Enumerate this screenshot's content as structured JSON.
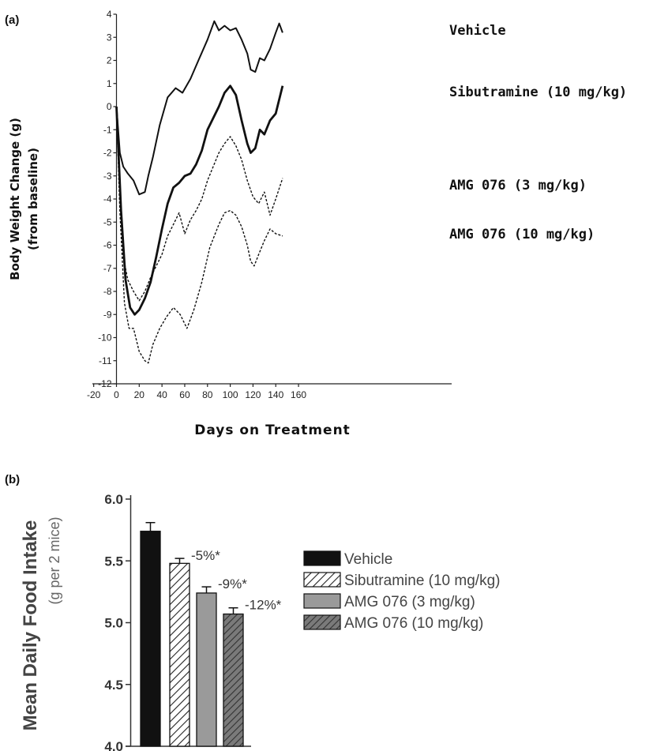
{
  "chart_data": [
    {
      "type": "line",
      "panel_label": "(a)",
      "ylabel_line1": "Body Weight Change (g)",
      "ylabel_line2": "(from baseline)",
      "xlabel": "Days on Treatment",
      "xlim": [
        -20,
        160
      ],
      "ylim": [
        -12,
        4
      ],
      "xticks": [
        -20,
        0,
        20,
        40,
        60,
        80,
        100,
        120,
        140,
        160
      ],
      "yticks": [
        4,
        3,
        2,
        1,
        0,
        -1,
        -2,
        -3,
        -4,
        -5,
        -6,
        -7,
        -8,
        -9,
        -10,
        -11,
        -12
      ],
      "grid": false,
      "series": [
        {
          "name": "Vehicle",
          "style": "solid",
          "x": [
            0,
            3,
            6,
            10,
            15,
            20,
            25,
            28,
            32,
            38,
            45,
            52,
            58,
            65,
            72,
            80,
            86,
            90,
            95,
            100,
            105,
            110,
            115,
            118,
            122,
            126,
            130,
            135,
            140,
            143,
            146
          ],
          "y": [
            0,
            -2.0,
            -2.6,
            -2.9,
            -3.2,
            -3.8,
            -3.7,
            -3.0,
            -2.2,
            -0.8,
            0.4,
            0.8,
            0.6,
            1.2,
            2.0,
            2.9,
            3.7,
            3.3,
            3.5,
            3.3,
            3.4,
            2.9,
            2.3,
            1.6,
            1.5,
            2.1,
            2.0,
            2.5,
            3.2,
            3.6,
            3.2
          ]
        },
        {
          "name": "Sibutramine (10 mg/kg)",
          "style": "bold",
          "x": [
            0,
            4,
            8,
            12,
            16,
            20,
            25,
            30,
            35,
            40,
            45,
            50,
            55,
            60,
            65,
            70,
            75,
            80,
            85,
            90,
            95,
            100,
            105,
            110,
            115,
            118,
            122,
            126,
            130,
            135,
            140,
            146
          ],
          "y": [
            0,
            -4.5,
            -7.5,
            -8.7,
            -9.0,
            -8.8,
            -8.3,
            -7.6,
            -6.5,
            -5.3,
            -4.2,
            -3.5,
            -3.3,
            -3.0,
            -2.9,
            -2.5,
            -1.9,
            -1.0,
            -0.5,
            0.0,
            0.6,
            0.9,
            0.5,
            -0.6,
            -1.6,
            -2.0,
            -1.8,
            -1.0,
            -1.2,
            -0.6,
            -0.3,
            0.9
          ]
        },
        {
          "name": "AMG 076 (3 mg/kg)",
          "style": "dashed",
          "x": [
            0,
            3,
            6,
            10,
            15,
            20,
            25,
            30,
            35,
            40,
            45,
            50,
            55,
            60,
            65,
            70,
            75,
            80,
            85,
            90,
            95,
            100,
            105,
            110,
            115,
            120,
            125,
            130,
            135,
            140,
            146
          ],
          "y": [
            0,
            -4.0,
            -6.5,
            -7.5,
            -8.0,
            -8.4,
            -8.0,
            -7.4,
            -6.9,
            -6.4,
            -5.6,
            -5.1,
            -4.6,
            -5.5,
            -4.9,
            -4.5,
            -4.0,
            -3.2,
            -2.6,
            -2.0,
            -1.6,
            -1.3,
            -1.7,
            -2.3,
            -3.2,
            -3.9,
            -4.2,
            -3.7,
            -4.7,
            -4.0,
            -3.1
          ]
        },
        {
          "name": "AMG 076 (10 mg/kg)",
          "style": "dashed",
          "x": [
            0,
            3,
            7,
            11,
            15,
            20,
            25,
            28,
            32,
            38,
            44,
            50,
            56,
            62,
            68,
            75,
            82,
            90,
            95,
            100,
            105,
            110,
            115,
            118,
            121,
            125,
            130,
            135,
            140,
            146
          ],
          "y": [
            0,
            -4.5,
            -8.5,
            -9.6,
            -9.6,
            -10.6,
            -11.0,
            -11.1,
            -10.3,
            -9.6,
            -9.1,
            -8.7,
            -9.0,
            -9.6,
            -8.8,
            -7.6,
            -6.1,
            -5.1,
            -4.6,
            -4.5,
            -4.7,
            -5.2,
            -6.0,
            -6.7,
            -6.9,
            -6.4,
            -5.8,
            -5.3,
            -5.5,
            -5.6
          ]
        }
      ]
    },
    {
      "type": "bar",
      "panel_label": "(b)",
      "ylabel_line1": "Mean Daily Food Intake",
      "ylabel_line2": "(g per 2 mice)",
      "ylim": [
        4.0,
        6.0
      ],
      "yticks": [
        "4.0",
        "4.5",
        "5.0",
        "5.5",
        "6.0"
      ],
      "categories": [
        "Vehicle",
        "Sibutramine (10 mg/kg)",
        "AMG 076 (3 mg/kg)",
        "AMG 076 (10 mg/kg)"
      ],
      "values": [
        5.74,
        5.48,
        5.24,
        5.07
      ],
      "errors": [
        0.07,
        0.04,
        0.05,
        0.05
      ],
      "annotations": [
        "",
        "-5%*",
        "-9%*",
        "-12%*"
      ],
      "fills": [
        "solid-black",
        "hatch-light",
        "solid-gray",
        "hatch-dark"
      ],
      "legend_position": "right"
    }
  ],
  "colors": {
    "ink": "#111111",
    "bar_gray": "#9a9a9a",
    "hatch_dark_bg": "#7a7a7a"
  }
}
